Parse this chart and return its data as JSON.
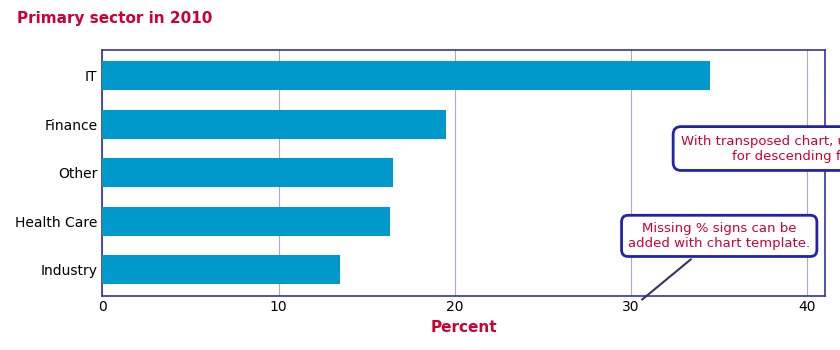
{
  "title": "Primary sector in 2010",
  "title_color": "#cc0033",
  "title_fontsize": 11,
  "categories": [
    "IT",
    "Finance",
    "Other",
    "Health Care",
    "Industry"
  ],
  "values": [
    34.5,
    19.5,
    16.5,
    16.3,
    13.5
  ],
  "bar_color": "#0099cc",
  "xlabel": "Percent",
  "xlabel_color": "#cc0033",
  "xlabel_fontsize": 11,
  "xlim": [
    0,
    41
  ],
  "xticks": [
    0,
    10,
    20,
    30,
    40
  ],
  "grid_color": "#aaaacc",
  "axis_border_color": "#3333aa",
  "background_color": "#ffffff",
  "annotation1_text": "With transposed chart, use FORMAT AFREQ\nfor descending frequencies.",
  "annotation2_text": "Missing % signs can be\nadded with chart template.",
  "annotation_color": "#cc0033",
  "annotation_box_edgecolor": "#2222aa",
  "annotation_fontsize": 9.5
}
